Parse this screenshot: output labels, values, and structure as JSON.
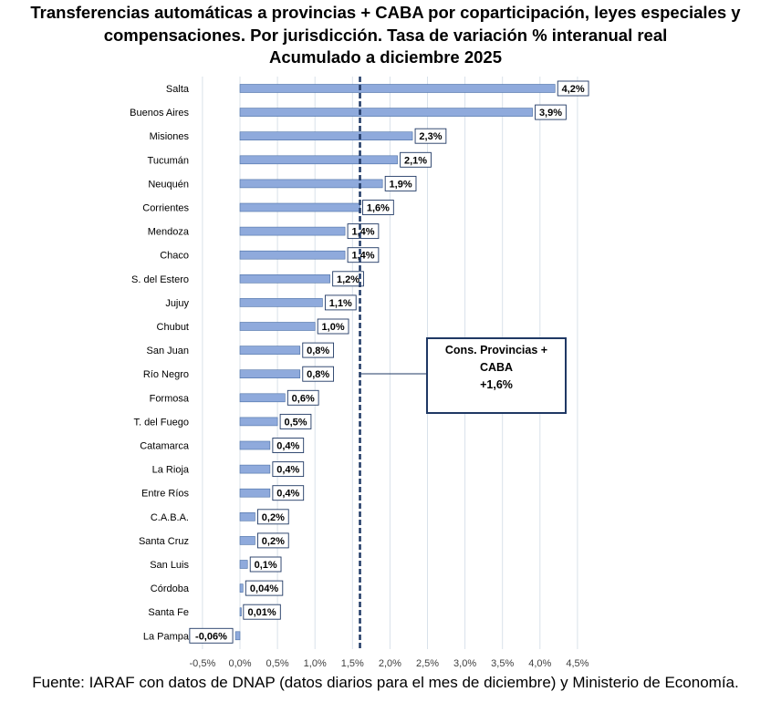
{
  "title_lines": [
    "Transferencias automáticas a provincias + CABA por coparticipación, leyes especiales y",
    "compensaciones. Por jurisdicción. Tasa de variación % interanual real",
    "Acumulado a diciembre 2025"
  ],
  "source": "Fuente: IARAF con datos de DNAP (datos diarios para el mes de diciembre) y Ministerio de Economía.",
  "colors": {
    "bar_fill": "#8faadc",
    "bar_stroke": "#4a6fa5",
    "reference_line": "#1f3864",
    "grid": "#d9e1ea",
    "label_border": "#1f3864"
  },
  "annotation": {
    "lines": [
      "Cons. Provincias +",
      "CABA",
      "+1,6%"
    ]
  },
  "chart_data": {
    "type": "bar",
    "orientation": "horizontal",
    "title": "Transferencias automáticas a provincias + CABA por coparticipación, leyes especiales y compensaciones. Por jurisdicción. Tasa de variación % interanual real. Acumulado a diciembre 2025",
    "categories": [
      "Salta",
      "Buenos Aires",
      "Misiones",
      "Tucumán",
      "Neuquén",
      "Corrientes",
      "Mendoza",
      "Chaco",
      "S. del Estero",
      "Jujuy",
      "Chubut",
      "San Juan",
      "Río Negro",
      "Formosa",
      "T. del Fuego",
      "Catamarca",
      "La Rioja",
      "Entre Ríos",
      "C.A.B.A.",
      "Santa Cruz",
      "San Luis",
      "Córdoba",
      "Santa Fe",
      "La Pampa"
    ],
    "values": [
      4.2,
      3.9,
      2.3,
      2.1,
      1.9,
      1.6,
      1.4,
      1.4,
      1.2,
      1.1,
      1.0,
      0.8,
      0.8,
      0.6,
      0.5,
      0.4,
      0.4,
      0.4,
      0.2,
      0.2,
      0.1,
      0.04,
      0.01,
      -0.06
    ],
    "data_labels": [
      "4,2%",
      "3,9%",
      "2,3%",
      "2,1%",
      "1,9%",
      "1,6%",
      "1,4%",
      "1,4%",
      "1,2%",
      "1,1%",
      "1,0%",
      "0,8%",
      "0,8%",
      "0,6%",
      "0,5%",
      "0,4%",
      "0,4%",
      "0,4%",
      "0,2%",
      "0,2%",
      "0,1%",
      "0,04%",
      "0,01%",
      "-0,06%"
    ],
    "xlim": [
      -0.5,
      4.5
    ],
    "x_ticks": [
      -0.5,
      0,
      0.5,
      1.0,
      1.5,
      2.0,
      2.5,
      3.0,
      3.5,
      4.0,
      4.5
    ],
    "x_tick_labels": [
      "-0,5%",
      "0,0%",
      "0,5%",
      "1,0%",
      "1,5%",
      "2,0%",
      "2,5%",
      "3,0%",
      "3,5%",
      "4,0%",
      "4,5%"
    ],
    "reference_line": {
      "value": 1.6,
      "style": "dashed"
    },
    "grid": "vertical",
    "legend": "none"
  }
}
